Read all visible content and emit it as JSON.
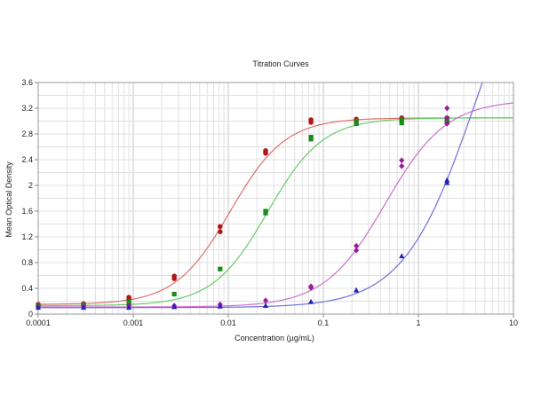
{
  "chart_data": {
    "type": "scatter",
    "title": "Titration Curves",
    "xlabel": "Concentration (µg/mL)",
    "ylabel": "Mean Optical Density",
    "x_scale": "log",
    "xlim": [
      0.0001,
      10
    ],
    "ylim": [
      0,
      3.6
    ],
    "x_ticks": [
      {
        "value": 0.0001,
        "label": "0.0001"
      },
      {
        "value": 0.001,
        "label": "0.001"
      },
      {
        "value": 0.01,
        "label": "0.01"
      },
      {
        "value": 0.1,
        "label": "0.1"
      },
      {
        "value": 1,
        "label": "1"
      },
      {
        "value": 10,
        "label": "10"
      }
    ],
    "y_ticks": [
      {
        "value": 0,
        "label": "0"
      },
      {
        "value": 0.4,
        "label": "0.4"
      },
      {
        "value": 0.8,
        "label": "0.8"
      },
      {
        "value": 1.2,
        "label": "1.2"
      },
      {
        "value": 1.6,
        "label": "1.6"
      },
      {
        "value": 2,
        "label": "2"
      },
      {
        "value": 2.4,
        "label": "2.4"
      },
      {
        "value": 2.8,
        "label": "2.8"
      },
      {
        "value": 3.2,
        "label": "3.2"
      },
      {
        "value": 3.6,
        "label": "3.6"
      }
    ],
    "grid": true,
    "legend": "none",
    "series": [
      {
        "color": "#b01818",
        "curve_color": "#dd7070",
        "marker": "circle",
        "fit": {
          "bottom": 0.15,
          "top": 3.05,
          "ec50": 0.0105,
          "hill": 1.5
        },
        "points": [
          {
            "x": 0.0001,
            "y": 0.15
          },
          {
            "x": 0.0001,
            "y": 0.13
          },
          {
            "x": 0.0003,
            "y": 0.16
          },
          {
            "x": 0.0003,
            "y": 0.14
          },
          {
            "x": 0.0009,
            "y": 0.26
          },
          {
            "x": 0.0009,
            "y": 0.23
          },
          {
            "x": 0.0027,
            "y": 0.59
          },
          {
            "x": 0.0027,
            "y": 0.55
          },
          {
            "x": 0.0082,
            "y": 1.36
          },
          {
            "x": 0.0082,
            "y": 1.28
          },
          {
            "x": 0.0247,
            "y": 2.54
          },
          {
            "x": 0.0247,
            "y": 2.5
          },
          {
            "x": 0.0741,
            "y": 3.02
          },
          {
            "x": 0.0741,
            "y": 2.98
          },
          {
            "x": 0.222,
            "y": 3.03
          },
          {
            "x": 0.222,
            "y": 2.99
          },
          {
            "x": 0.667,
            "y": 3.05
          },
          {
            "x": 0.667,
            "y": 3.0
          },
          {
            "x": 2.0,
            "y": 3.05
          },
          {
            "x": 2.0,
            "y": 3.01
          }
        ]
      },
      {
        "color": "#1a8a1a",
        "curve_color": "#66cc66",
        "marker": "square",
        "fit": {
          "bottom": 0.13,
          "top": 3.05,
          "ec50": 0.026,
          "hill": 1.5
        },
        "points": [
          {
            "x": 0.0001,
            "y": 0.13
          },
          {
            "x": 0.0003,
            "y": 0.14
          },
          {
            "x": 0.0009,
            "y": 0.19
          },
          {
            "x": 0.0009,
            "y": 0.17
          },
          {
            "x": 0.0027,
            "y": 0.31
          },
          {
            "x": 0.0082,
            "y": 0.7
          },
          {
            "x": 0.0247,
            "y": 1.6
          },
          {
            "x": 0.0247,
            "y": 1.57
          },
          {
            "x": 0.0741,
            "y": 2.75
          },
          {
            "x": 0.0741,
            "y": 2.72
          },
          {
            "x": 0.222,
            "y": 3.0
          },
          {
            "x": 0.222,
            "y": 2.96
          },
          {
            "x": 0.667,
            "y": 3.02
          },
          {
            "x": 0.667,
            "y": 2.97
          },
          {
            "x": 2.0,
            "y": 3.02
          },
          {
            "x": 2.0,
            "y": 2.98
          }
        ]
      },
      {
        "color": "#9a1a9a",
        "curve_color": "#cc70cc",
        "marker": "diamond",
        "fit": {
          "bottom": 0.11,
          "top": 3.33,
          "ec50": 0.45,
          "hill": 1.35
        },
        "points": [
          {
            "x": 0.0001,
            "y": 0.11
          },
          {
            "x": 0.0003,
            "y": 0.12
          },
          {
            "x": 0.0009,
            "y": 0.13
          },
          {
            "x": 0.0027,
            "y": 0.13
          },
          {
            "x": 0.0082,
            "y": 0.15
          },
          {
            "x": 0.0247,
            "y": 0.21
          },
          {
            "x": 0.0741,
            "y": 0.43
          },
          {
            "x": 0.0741,
            "y": 0.41
          },
          {
            "x": 0.222,
            "y": 1.06
          },
          {
            "x": 0.222,
            "y": 0.99
          },
          {
            "x": 0.667,
            "y": 2.39
          },
          {
            "x": 0.667,
            "y": 2.3
          },
          {
            "x": 2.0,
            "y": 3.2
          },
          {
            "x": 2.0,
            "y": 3.05
          },
          {
            "x": 2.0,
            "y": 2.96
          }
        ]
      },
      {
        "color": "#2222bb",
        "curve_color": "#7070dd",
        "marker": "triangle",
        "fit": {
          "bottom": 0.1,
          "top": 6.5,
          "ec50": 4.0,
          "hill": 1.15
        },
        "points": [
          {
            "x": 0.0001,
            "y": 0.1
          },
          {
            "x": 0.0003,
            "y": 0.1
          },
          {
            "x": 0.0009,
            "y": 0.1
          },
          {
            "x": 0.0027,
            "y": 0.11
          },
          {
            "x": 0.0082,
            "y": 0.12
          },
          {
            "x": 0.0247,
            "y": 0.13
          },
          {
            "x": 0.0741,
            "y": 0.19
          },
          {
            "x": 0.222,
            "y": 0.37
          },
          {
            "x": 0.667,
            "y": 0.9
          },
          {
            "x": 2.0,
            "y": 2.08
          },
          {
            "x": 2.0,
            "y": 2.04
          }
        ]
      }
    ]
  }
}
